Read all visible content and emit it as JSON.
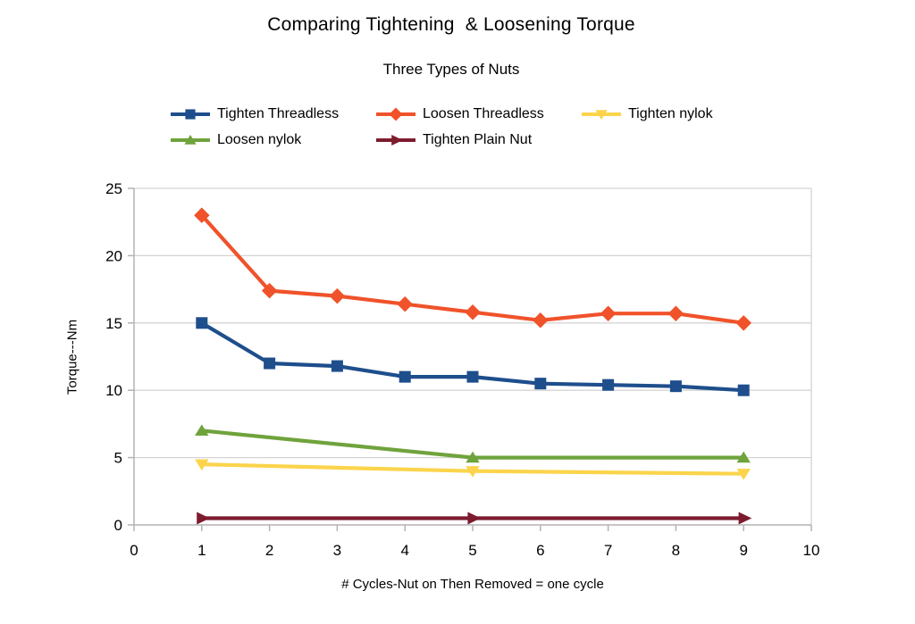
{
  "chart_data": {
    "type": "line",
    "title": "Comparing Tightening  & Loosening Torque",
    "subtitle": "Three Types of Nuts",
    "xlabel": "# Cycles-Nut on Then Removed = one cycle",
    "ylabel": "Torque---Nm",
    "xlim": [
      0,
      10
    ],
    "ylim": [
      0,
      25
    ],
    "xticks": [
      0,
      1,
      2,
      3,
      4,
      5,
      6,
      7,
      8,
      9,
      10
    ],
    "yticks": [
      0,
      5,
      10,
      15,
      20,
      25
    ],
    "grid": "horizontal-only",
    "legend_position": "top",
    "background": "#ffffff",
    "grid_color": "#d4d4d4",
    "axis_color": "#b3b3b3",
    "text_color": "#000000",
    "series": [
      {
        "name": "Tighten Threadless",
        "color": "#1e4e8c",
        "marker": "square",
        "x": [
          1,
          2,
          3,
          4,
          5,
          6,
          7,
          8,
          9
        ],
        "y": [
          15,
          12,
          11.8,
          11,
          11,
          10.5,
          10.4,
          10.3,
          10
        ]
      },
      {
        "name": "Loosen Threadless",
        "color": "#f0522a",
        "marker": "diamond",
        "x": [
          1,
          2,
          3,
          4,
          5,
          6,
          7,
          8,
          9
        ],
        "y": [
          23,
          17.4,
          17,
          16.4,
          15.8,
          15.2,
          15.7,
          15.7,
          15
        ]
      },
      {
        "name": "Tighten nylok",
        "color": "#fbd44b",
        "marker": "triangle-down",
        "x": [
          1,
          5,
          9
        ],
        "y": [
          4.5,
          4,
          3.8
        ]
      },
      {
        "name": "Loosen nylok",
        "color": "#6fa33c",
        "marker": "triangle-up",
        "x": [
          1,
          5,
          9
        ],
        "y": [
          7,
          5,
          5
        ]
      },
      {
        "name": "Tighten Plain Nut",
        "color": "#7d1c2e",
        "marker": "triangle-right",
        "x": [
          1,
          5,
          9
        ],
        "y": [
          0.5,
          0.5,
          0.5
        ]
      }
    ]
  }
}
